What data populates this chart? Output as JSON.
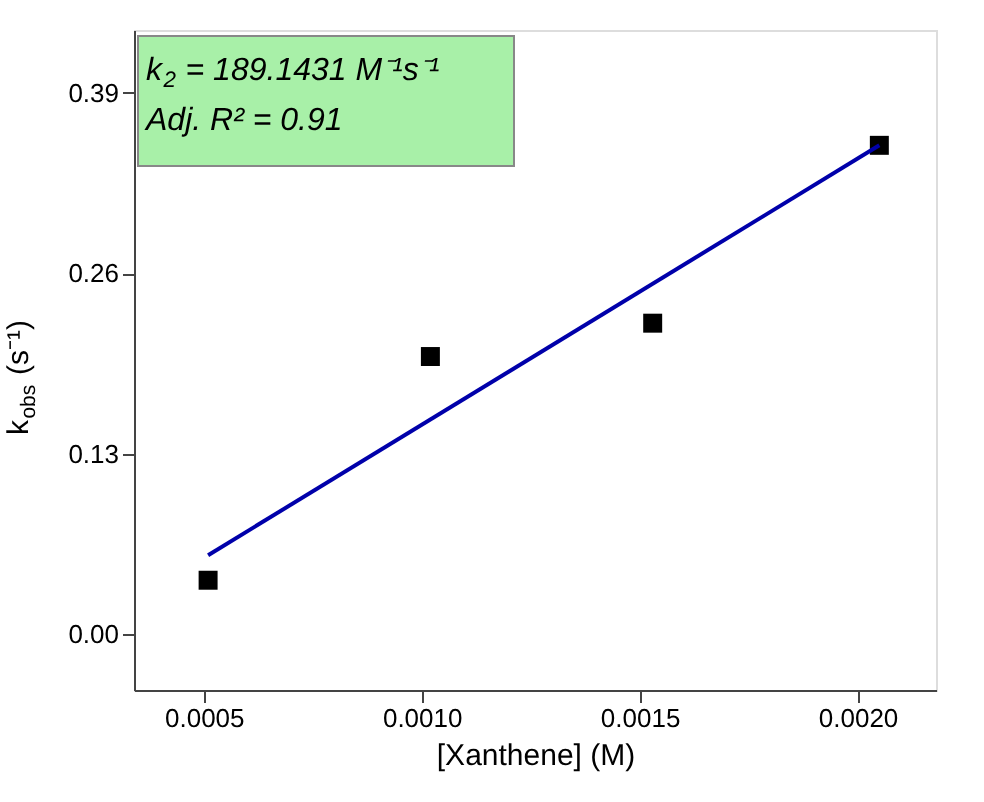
{
  "chart_data": {
    "type": "scatter",
    "xlabel": "[Xanthene] (M)",
    "ylabel": "k$_{obs}$ (s⁻¹)",
    "xlim": [
      0.00034,
      0.00218
    ],
    "xticks": [
      {
        "value": 0.0005,
        "label": "0.0005"
      },
      {
        "value": 0.001,
        "label": "0.0010"
      },
      {
        "value": 0.0015,
        "label": "0.0015"
      },
      {
        "value": 0.002,
        "label": "0.0020"
      }
    ],
    "ylim": [
      -0.04,
      0.435
    ],
    "yticks": [
      {
        "value": 0,
        "label": "0.00"
      },
      0.13,
      0.26,
      0.39
    ],
    "grid": false,
    "series": [
      {
        "marker": "square",
        "color": "#000000",
        "x": [
          0.00051,
          0.00102,
          0.00153,
          0.00205
        ],
        "values": [
          0.039,
          0.2,
          0.224,
          0.352
        ]
      },
      {
        "type": "line",
        "marker": "none",
        "color": "#0000aa",
        "x": [
          0.00051,
          0.00205
        ],
        "values": [
          0.057,
          0.352
        ]
      }
    ],
    "annotations": [
      "k$_{2}$ = 189.1431 M⁻¹s⁻¹",
      "Adj. R² = 0.91"
    ]
  }
}
